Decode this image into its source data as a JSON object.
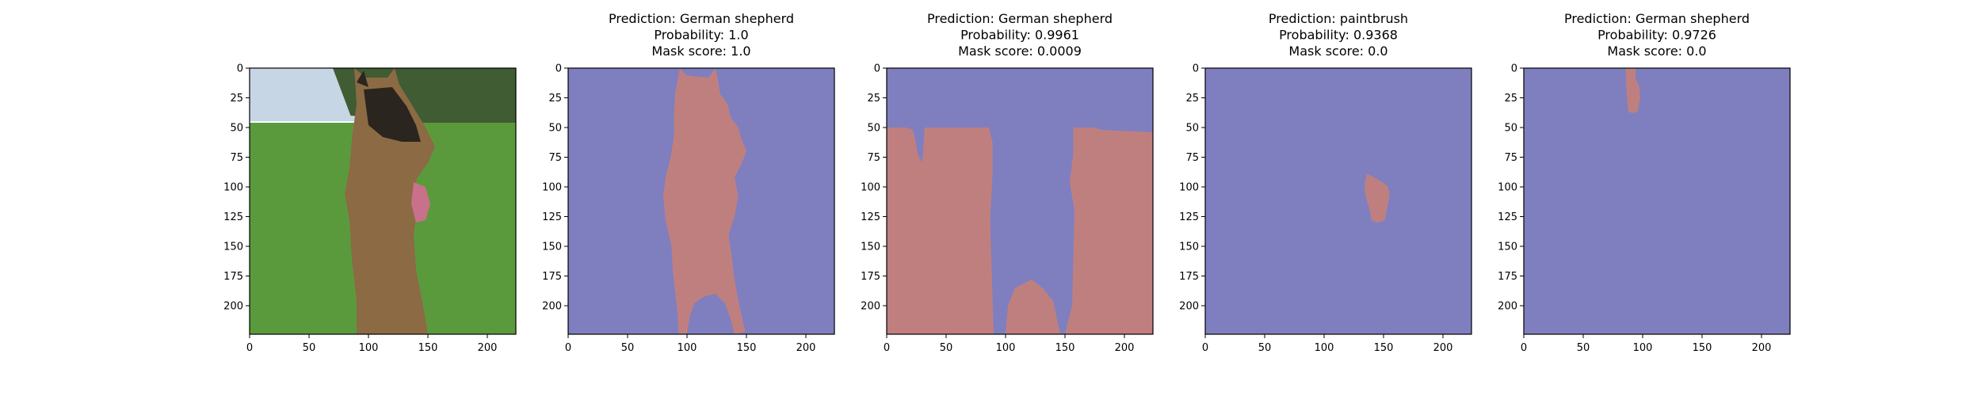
{
  "colors": {
    "mask_background": "#7f7fbf",
    "mask_foreground": "#c07f7f",
    "sky": "#c6d6e4",
    "trees": "#3f5c33",
    "grass": "#5b9a3c",
    "dog_fur": "#8c6a43",
    "dog_dark": "#2b2520",
    "tongue": "#c9708a"
  },
  "panels": [
    {
      "kind": "photo",
      "title_lines": [],
      "mask_region": ""
    },
    {
      "kind": "mask",
      "title_lines": [
        "Prediction: German shepherd",
        "Probability: 1.0",
        "Mask score: 1.0"
      ],
      "mask_region": "dog-silhouette"
    },
    {
      "kind": "mask",
      "title_lines": [
        "Prediction: German shepherd",
        "Probability: 0.9961",
        "Mask score: 0.0009"
      ],
      "mask_region": "background-except-dog"
    },
    {
      "kind": "mask",
      "title_lines": [
        "Prediction: paintbrush",
        "Probability: 0.9368",
        "Mask score: 0.0"
      ],
      "mask_region": "small-tongue-patch"
    },
    {
      "kind": "mask",
      "title_lines": [
        "Prediction: German shepherd",
        "Probability: 0.9726",
        "Mask score: 0.0"
      ],
      "mask_region": "small-ear-patch"
    }
  ],
  "chart_data": {
    "type": "image-grid",
    "xlim": [
      0,
      224
    ],
    "ylim": [
      224,
      0
    ],
    "xticks": [
      0,
      50,
      100,
      150,
      200
    ],
    "yticks": [
      0,
      25,
      50,
      75,
      100,
      125,
      150,
      175,
      200
    ],
    "predictions": [
      {
        "label": "German shepherd",
        "probability": 1.0,
        "mask_score": 1.0
      },
      {
        "label": "German shepherd",
        "probability": 0.9961,
        "mask_score": 0.0009
      },
      {
        "label": "paintbrush",
        "probability": 0.9368,
        "mask_score": 0.0
      },
      {
        "label": "German shepherd",
        "probability": 0.9726,
        "mask_score": 0.0
      }
    ]
  }
}
